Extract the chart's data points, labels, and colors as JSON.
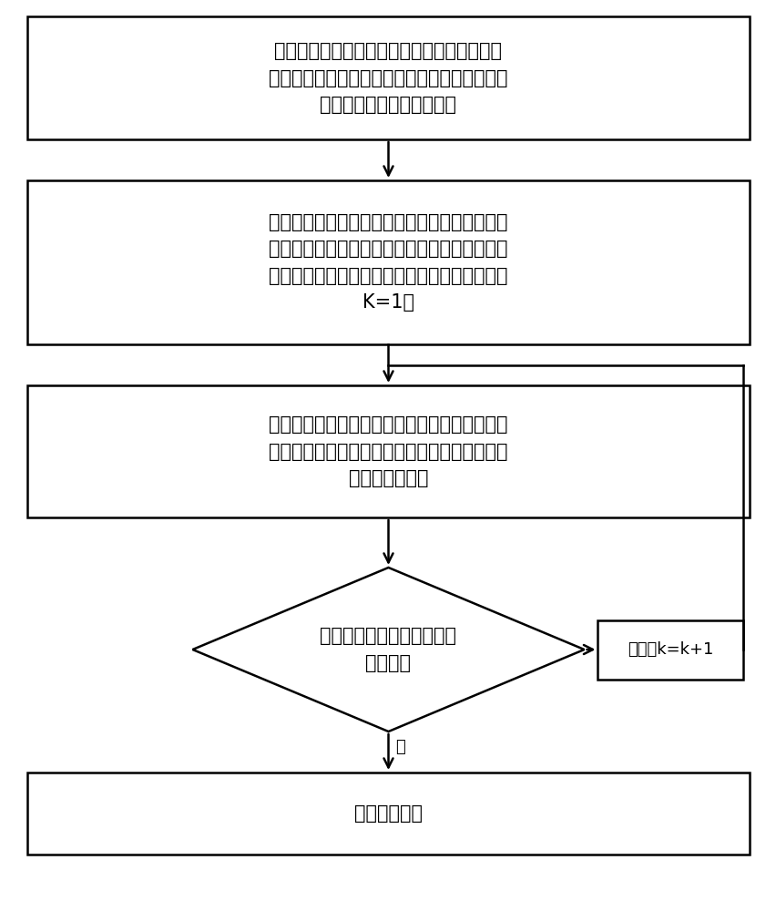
{
  "bg_color": "#ffffff",
  "border_color": "#000000",
  "text_color": "#000000",
  "line_color": "#000000",
  "font_size": 15,
  "small_font_size": 13,
  "lw": 1.8,
  "box1_text": "在初始时刻，将扫描到的频谱进行划分得到多\n个信道，并将所述信道按照从小到大的升序顺序\n构建一个单支二叉排序树；",
  "box2_text": "根据系统吞吐量最大的目标，利用分配算法对用\n户进行信道分配，获取分配矩阵，并根据所述分\n配矩阵更新二叉排序树上每个节点上的用户，令\nK=1；",
  "box3_text": "对频谱进行扫描；根据扫描后频谱的变化对二叉\n排序树进行更新，同时根据次用户的变化重新进\n行信道的分配；",
  "diamond_text": "判断是否接收到停止扫描频\n谱的命令",
  "box4_text": "频谱分配结束",
  "no_box_text": "否，令k=k+1",
  "yes_label": "是"
}
